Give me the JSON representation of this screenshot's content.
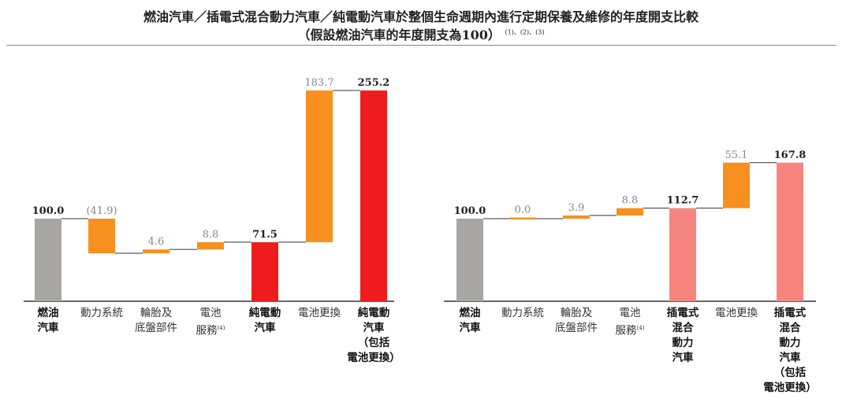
{
  "title": "燃油汽車／插電式混合動力汽車／純電動汽車於整個生命週期內進行定期保養及維修的年度開支比較",
  "subtitle": "（假設燃油汽車的年度開支為100）",
  "subtitle_notes": "(1)、(2)、(3)",
  "colors": {
    "fuel": "#a7a6a2",
    "delta": "#f7901e",
    "ev": "#ee1c1c",
    "phev": "#f6857f",
    "total_label": "#222222",
    "delta_label": "#888888"
  },
  "chart_data": [
    {
      "type": "waterfall",
      "ylim": [
        0,
        260
      ],
      "categories": [
        {
          "label": "燃油\n汽車",
          "kind": "total",
          "bold": true
        },
        {
          "label": "動力系統",
          "kind": "delta"
        },
        {
          "label": "輪胎及\n底盤部件",
          "kind": "delta"
        },
        {
          "label": "電池\n服務",
          "note": "(4)",
          "kind": "delta"
        },
        {
          "label": "純電動\n汽車",
          "kind": "total",
          "bold": true
        },
        {
          "label": "電池更換",
          "kind": "delta"
        },
        {
          "label": "純電動\n汽車\n（包括\n電池更換）",
          "kind": "total",
          "bold": true
        }
      ],
      "values": [
        100.0,
        -41.9,
        4.6,
        8.8,
        71.5,
        183.7,
        255.2
      ],
      "value_labels": [
        "100.0",
        "(41.9)",
        "4.6",
        "8.8",
        "71.5",
        "183.7",
        "255.2"
      ],
      "total_colors": [
        "fuel",
        "ev",
        "ev"
      ]
    },
    {
      "type": "waterfall",
      "ylim": [
        0,
        260
      ],
      "categories": [
        {
          "label": "燃油\n汽車",
          "kind": "total",
          "bold": true
        },
        {
          "label": "動力系統",
          "kind": "delta"
        },
        {
          "label": "輪胎及\n底盤部件",
          "kind": "delta"
        },
        {
          "label": "電池\n服務",
          "note": "(4)",
          "kind": "delta"
        },
        {
          "label": "插電式\n混合\n動力\n汽車",
          "kind": "total",
          "bold": true
        },
        {
          "label": "電池更換",
          "kind": "delta"
        },
        {
          "label": "插電式\n混合\n動力\n汽車\n（包括\n電池更換）",
          "kind": "total",
          "bold": true
        }
      ],
      "values": [
        100.0,
        0.0,
        3.9,
        8.8,
        112.7,
        55.1,
        167.8
      ],
      "value_labels": [
        "100.0",
        "0.0",
        "3.9",
        "8.8",
        "112.7",
        "55.1",
        "167.8"
      ],
      "total_colors": [
        "fuel",
        "phev",
        "phev"
      ]
    }
  ]
}
